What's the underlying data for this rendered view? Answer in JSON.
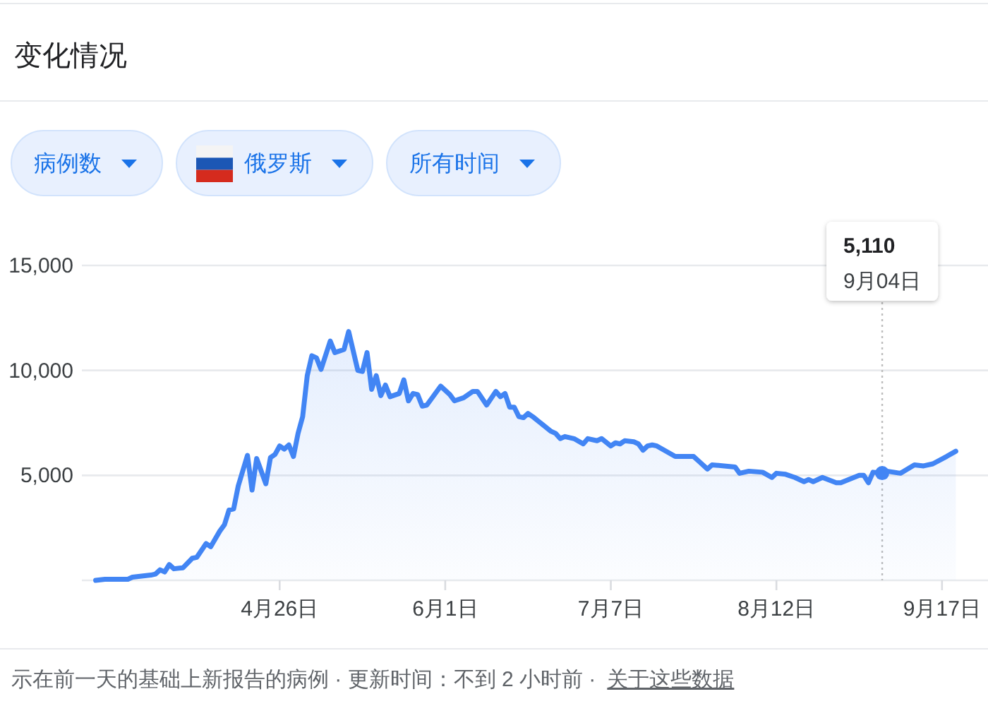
{
  "chart_data": {
    "type": "area",
    "title": "变化情况",
    "annotations": [
      "病例数",
      "俄罗斯",
      "所有时间",
      "示在前一天的基础上新报告的病例 · 更新时间：不到 2 小时前 ·",
      "关于这些数据",
      "5,110",
      "9月04日"
    ],
    "x": [
      "--03-17",
      "--03-19",
      "--03-24",
      "--03-25",
      "--03-29",
      "--03-30",
      "--03-31",
      "--04-01",
      "--04-02",
      "--04-03",
      "--04-05",
      "--04-07",
      "--04-08",
      "--04-10",
      "--04-11",
      "--04-13",
      "--04-14",
      "--04-15",
      "--04-16",
      "--04-17",
      "--04-19",
      "--04-20",
      "--04-21",
      "--04-23",
      "--04-24",
      "--04-25",
      "--04-26",
      "--04-27",
      "--04-28",
      "--04-29",
      "--04-30",
      "--05-01",
      "--05-02",
      "--05-03",
      "--05-04",
      "--05-05",
      "--05-07",
      "--05-08",
      "--05-10",
      "--05-11",
      "--05-13",
      "--05-14",
      "--05-15",
      "--05-16",
      "--05-17",
      "--05-18",
      "--05-19",
      "--05-20",
      "--05-22",
      "--05-23",
      "--05-24",
      "--05-25",
      "--05-26",
      "--05-27",
      "--05-28",
      "--05-31",
      "--06-02",
      "--06-03",
      "--06-05",
      "--06-07",
      "--06-08",
      "--06-10",
      "--06-12",
      "--06-13",
      "--06-14",
      "--06-15",
      "--06-16",
      "--06-17",
      "--06-18",
      "--06-19",
      "--06-20",
      "--06-22",
      "--06-24",
      "--06-25",
      "--06-26",
      "--06-27",
      "--06-29",
      "--07-01",
      "--07-02",
      "--07-04",
      "--07-05",
      "--07-07",
      "--07-08",
      "--07-09",
      "--07-10",
      "--07-12",
      "--07-13",
      "--07-14",
      "--07-15",
      "--07-16",
      "--07-17",
      "--07-21",
      "--07-25",
      "--07-26",
      "--07-28",
      "--07-29",
      "--08-03",
      "--08-04",
      "--08-06",
      "--08-09",
      "--08-11",
      "--08-12",
      "--08-14",
      "--08-16",
      "--08-18",
      "--08-19",
      "--08-20",
      "--08-22",
      "--08-25",
      "--08-26",
      "--08-30",
      "--08-31",
      "--09-01",
      "--09-02",
      "--09-04",
      "--09-05",
      "--09-08",
      "--09-11",
      "--09-13",
      "--09-15",
      "--09-18",
      "--09-20"
    ],
    "series": [
      {
        "color": "#4285f4",
        "values": [
          0,
          50,
          50,
          150,
          250,
          300,
          500,
          400,
          750,
          550,
          600,
          1050,
          1100,
          1750,
          1600,
          2350,
          2650,
          3350,
          3400,
          4500,
          5950,
          4300,
          5800,
          4600,
          5850,
          6000,
          6400,
          6250,
          6450,
          5900,
          7000,
          7800,
          9750,
          10700,
          10600,
          10050,
          11400,
          10850,
          11000,
          11850,
          10000,
          9950,
          10850,
          9100,
          9750,
          8800,
          9300,
          8750,
          8900,
          9550,
          8550,
          8900,
          8850,
          8300,
          8350,
          9250,
          8850,
          8550,
          8700,
          9000,
          9000,
          8350,
          9000,
          8750,
          8900,
          8250,
          8250,
          7800,
          7750,
          7950,
          7800,
          7450,
          7100,
          7000,
          6750,
          6850,
          6750,
          6500,
          6750,
          6650,
          6750,
          6400,
          6550,
          6500,
          6650,
          6600,
          6500,
          6200,
          6400,
          6450,
          6400,
          5900,
          5900,
          5700,
          5300,
          5500,
          5400,
          5100,
          5200,
          5150,
          4900,
          5100,
          5050,
          4900,
          4700,
          4800,
          4700,
          4900,
          4650,
          4650,
          5000,
          5000,
          4650,
          5150,
          5110,
          5200,
          5100,
          5500,
          5450,
          5550,
          5900,
          6150
        ]
      },
      {
        "type": "scatter",
        "color": "#4285f4",
        "x": [
          "--09-04"
        ],
        "values": [
          5110
        ]
      }
    ],
    "xlim": [
      "--03-14",
      "--09-27"
    ],
    "xticks": [
      {
        "value": "--04-26",
        "label": "4月26日"
      },
      {
        "value": "--06-01",
        "label": "6月1日"
      },
      {
        "value": "--07-07",
        "label": "7月7日"
      },
      {
        "value": "--08-12",
        "label": "8月12日"
      },
      {
        "value": "--09-17",
        "label": "9月17日"
      }
    ],
    "ylim": [
      0,
      15000
    ],
    "yticks": [
      {
        "value": 0,
        "label": null
      },
      {
        "value": 5000,
        "label": "5,000"
      },
      {
        "value": 10000,
        "label": "10,000"
      },
      {
        "value": 15000,
        "label": "15,000"
      }
    ],
    "grid": "y",
    "ref_lines": [
      {
        "axis": "x",
        "value": "--09-04",
        "color": "#bdbdbd",
        "line_style": "dotted"
      }
    ]
  }
}
